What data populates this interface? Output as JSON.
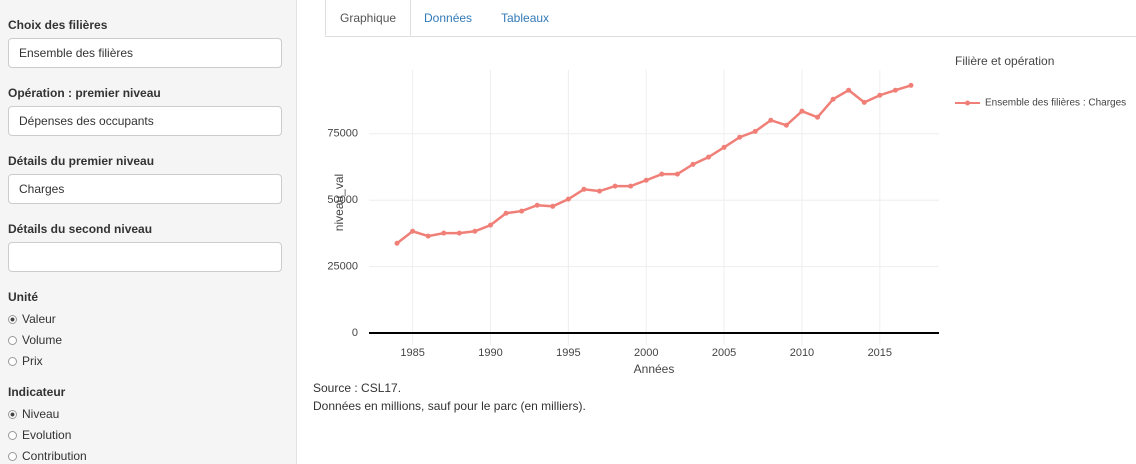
{
  "sidebar": {
    "selects": [
      {
        "label": "Choix des filières",
        "value": "Ensemble des filières"
      },
      {
        "label": "Opération : premier niveau",
        "value": "Dépenses des occupants"
      },
      {
        "label": "Détails du premier niveau",
        "value": "Charges"
      },
      {
        "label": "Détails du second niveau"
      }
    ],
    "radio_groups": [
      {
        "label": "Unité",
        "options": [
          "Valeur",
          "Volume",
          "Prix"
        ],
        "selected": 0
      },
      {
        "label": "Indicateur",
        "options": [
          "Niveau",
          "Evolution",
          "Contribution"
        ],
        "selected": 0
      }
    ]
  },
  "tabs": {
    "items": [
      "Graphique",
      "Données",
      "Tableaux"
    ],
    "active": 0
  },
  "chart_data": {
    "type": "line",
    "x_label": "Années",
    "y_label": "niveau_val",
    "legend_title": "Filière et opération",
    "x": [
      1984,
      1985,
      1986,
      1987,
      1988,
      1989,
      1990,
      1991,
      1992,
      1993,
      1994,
      1995,
      1996,
      1997,
      1998,
      1999,
      2000,
      2001,
      2002,
      2003,
      2004,
      2005,
      2006,
      2007,
      2008,
      2009,
      2010,
      2011,
      2012,
      2013,
      2014,
      2015,
      2016,
      2017
    ],
    "series": [
      {
        "name": "Ensemble des filières : Charges",
        "color": "#f07f78",
        "values": [
          33800,
          38300,
          36500,
          37600,
          37600,
          38300,
          40600,
          45100,
          45900,
          48100,
          47700,
          50400,
          54100,
          53400,
          55300,
          55300,
          57500,
          59800,
          59800,
          63500,
          66200,
          69900,
          73700,
          75900,
          80100,
          78200,
          83500,
          81200,
          88000,
          91400,
          86800,
          89500,
          91400,
          93200
        ]
      }
    ],
    "xlim": [
      1982.2,
      2018.8
    ],
    "xticks": [
      1985,
      1990,
      1995,
      2000,
      2005,
      2010,
      2015
    ],
    "ylim": [
      -4500,
      99000
    ],
    "yticks": [
      0,
      25000,
      50000,
      75000
    ],
    "grid": true
  },
  "notes": [
    "Source : CSL17.",
    "Données en millions, sauf pour le parc (en milliers)."
  ]
}
